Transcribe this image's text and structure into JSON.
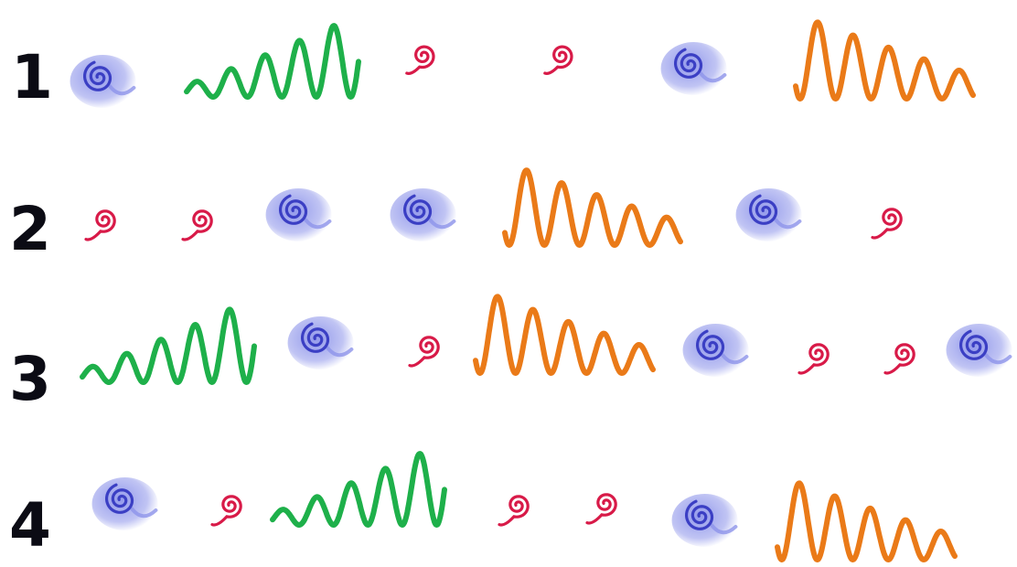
{
  "rows": [
    {
      "number": "1",
      "items": [
        "blue-spiral",
        "green-wave",
        "red-spiral",
        "red-spiral",
        "blue-spiral",
        "orange-wave"
      ]
    },
    {
      "number": "2",
      "items": [
        "red-spiral",
        "red-spiral",
        "blue-spiral",
        "blue-spiral",
        "orange-wave",
        "blue-spiral",
        "red-spiral"
      ]
    },
    {
      "number": "3",
      "items": [
        "green-wave",
        "blue-spiral",
        "red-spiral",
        "orange-wave",
        "blue-spiral",
        "red-spiral",
        "red-spiral",
        "blue-spiral"
      ]
    },
    {
      "number": "4",
      "items": [
        "blue-spiral",
        "red-spiral",
        "green-wave",
        "red-spiral",
        "red-spiral",
        "blue-spiral",
        "orange-wave"
      ]
    }
  ],
  "colors": {
    "blue_spiral": "#3b3fc4",
    "blue_glow": "#8d94ea",
    "red_spiral": "#d81a48",
    "green_wave": "#1eb04a",
    "orange_wave": "#ea7a18",
    "number_text": "#0b0b14"
  }
}
